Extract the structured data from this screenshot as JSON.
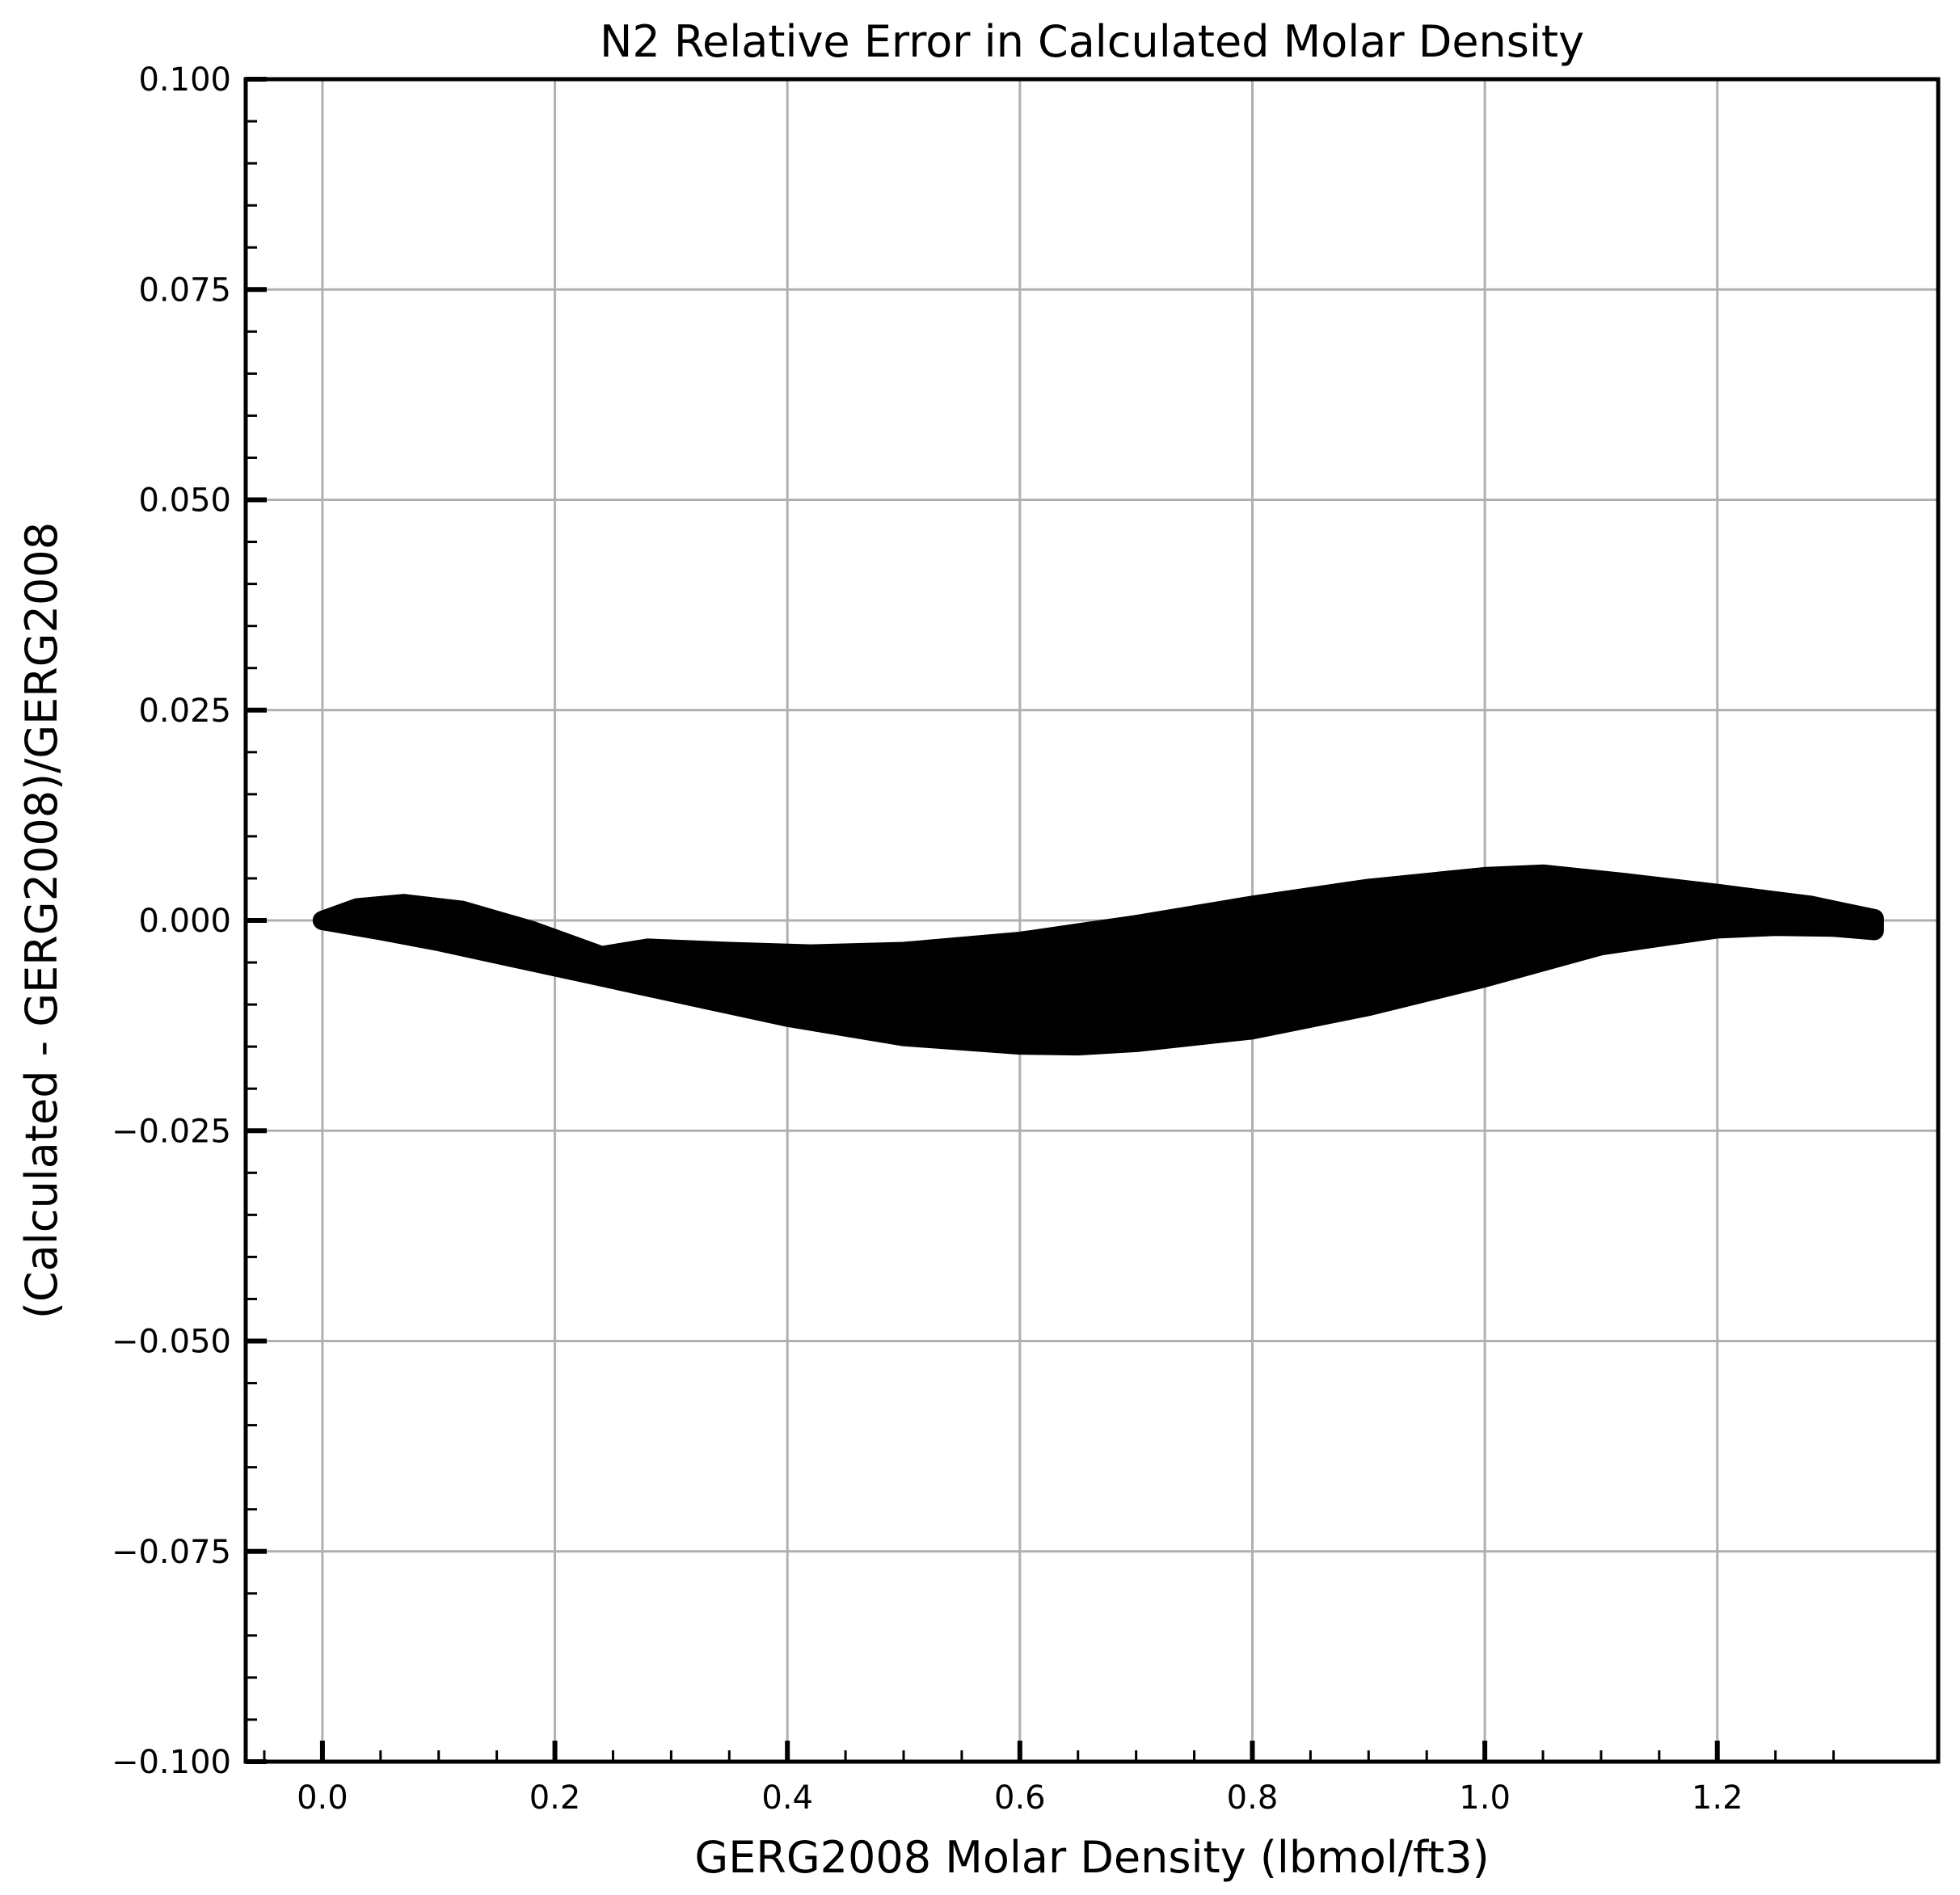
{
  "chart_data": {
    "type": "scatter",
    "title": "N2 Relative Error in Calculated Molar Density",
    "xlabel": "GERG2008 Molar Density (lbmol/ft3)",
    "ylabel": "(Calculated - GERG2008)/GERG2008",
    "xlim": [
      -0.066,
      1.39
    ],
    "ylim": [
      -0.1,
      0.1
    ],
    "x_ticks": [
      0.0,
      0.2,
      0.4,
      0.6,
      0.8,
      1.0,
      1.2
    ],
    "x_tick_labels": [
      "0.0",
      "0.2",
      "0.4",
      "0.6",
      "0.8",
      "1.0",
      "1.2"
    ],
    "y_ticks": [
      0.1,
      0.075,
      0.05,
      0.025,
      0.0,
      -0.025,
      -0.05,
      -0.075,
      -0.1
    ],
    "y_tick_labels": [
      "0.100",
      "0.075",
      "0.050",
      "0.025",
      "0.000",
      "−0.025",
      "−0.050",
      "−0.075",
      "−0.100"
    ],
    "grid": true,
    "marker_color": "#000000",
    "series": [
      {
        "description_of_shape": "dense band of points",
        "upper_envelope": {
          "x": [
            0.0,
            0.03,
            0.07,
            0.12,
            0.18,
            0.24,
            0.28,
            0.35,
            0.42,
            0.5,
            0.6,
            0.7,
            0.8,
            0.9,
            1.0,
            1.05,
            1.12,
            1.2,
            1.28,
            1.335
          ],
          "y": [
            0.0,
            0.0015,
            0.002,
            0.0012,
            -0.0012,
            -0.0042,
            -0.0033,
            -0.0037,
            -0.004,
            -0.0037,
            -0.0025,
            -0.0005,
            0.0018,
            0.0038,
            0.0052,
            0.0055,
            0.0045,
            0.0032,
            0.0018,
            0.0002
          ]
        },
        "lower_envelope": {
          "x": [
            0.0,
            0.05,
            0.1,
            0.2,
            0.3,
            0.4,
            0.5,
            0.6,
            0.65,
            0.7,
            0.8,
            0.9,
            1.0,
            1.1,
            1.2,
            1.25,
            1.3,
            1.335
          ],
          "y": [
            0.0,
            -0.0012,
            -0.0025,
            -0.0055,
            -0.0085,
            -0.0115,
            -0.0138,
            -0.0148,
            -0.0149,
            -0.0145,
            -0.013,
            -0.0102,
            -0.0068,
            -0.003,
            -0.001,
            -0.0007,
            -0.0008,
            -0.0012
          ]
        }
      }
    ]
  }
}
